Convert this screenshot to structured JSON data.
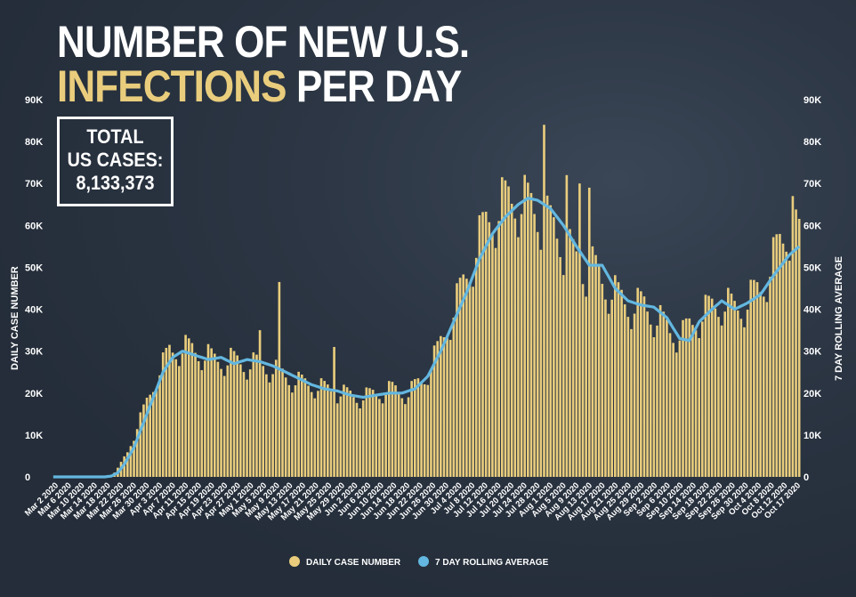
{
  "title": {
    "line1": "NUMBER OF NEW U.S.",
    "line2_accent": "INFECTIONS",
    "line2_rest": "PER DAY"
  },
  "total_box": {
    "line1": "TOTAL",
    "line2": "US CASES:",
    "line3": "8,133,373"
  },
  "colors": {
    "bar": "#e9cd7d",
    "line": "#63b7e0",
    "background": "#27303d",
    "text": "#ffffff"
  },
  "chart_data": {
    "type": "bar",
    "ylabel_left": "DAILY CASE NUMBER",
    "ylabel_right": "7 DAY ROLLING AVERAGE",
    "ylim": [
      0,
      90000
    ],
    "yticks": [
      0,
      10000,
      20000,
      30000,
      40000,
      50000,
      60000,
      70000,
      80000,
      90000
    ],
    "ytick_labels": [
      "0",
      "10K",
      "20K",
      "30K",
      "40K",
      "50K",
      "60K",
      "70K",
      "80K",
      "90K"
    ],
    "x_start": "2020-02-29",
    "x_end": "2020-10-17",
    "x_tick_labels": [
      "Mar 2 2020",
      "Mar 6 2020",
      "Mar 10 2020",
      "Mar 14 2020",
      "Mar 18 2020",
      "Mar 22 2020",
      "Mar 26 2020",
      "Mar 30 2020",
      "Apr 3 2020",
      "Apr 7 2020",
      "Apr 11 2020",
      "Apr 15 2020",
      "Apr 19 2020",
      "Apr 23 2020",
      "Apr 27 2020",
      "May 1 2020",
      "May 5 2020",
      "May 9 2020",
      "May 13 2020",
      "May 17 2020",
      "May 21 2020",
      "May 25 2020",
      "May 29 2020",
      "Jun 2 2020",
      "Jun 6 2020",
      "Jun 10 2020",
      "Jun 14 2020",
      "Jun 18 2020",
      "Jun 22 2020",
      "Jun 26 2020",
      "Jun 30 2020",
      "Jul 4 2020",
      "Jul 8 2020",
      "Jul 12 2020",
      "Jul 16 2020",
      "Jul 20 2020",
      "Jul 24 2020",
      "Jul 28 2020",
      "Aug 1 2020",
      "Aug 5 2020",
      "Aug 9 2020",
      "Aug 13 2020",
      "Aug 17 2020",
      "Aug 21 2020",
      "Aug 25 2020",
      "Aug 29 2020",
      "Sep 2 2020",
      "Sep 6 2020",
      "Sep 10 2020",
      "Sep 14 2020",
      "Sep 18 2020",
      "Sep 22 2020",
      "Sep 26 2020",
      "Sep 30 2020",
      "Oct 4 2020",
      "Oct 8 2020",
      "Oct 12 2020",
      "Oct 17 2020"
    ],
    "legend_position": "bottom",
    "series": [
      {
        "name": "DAILY CASE NUMBER",
        "type": "bar",
        "anchors": [
          [
            0,
            0
          ],
          [
            14,
            0
          ],
          [
            18,
            200
          ],
          [
            20,
            2000
          ],
          [
            23,
            6000
          ],
          [
            26,
            12000
          ],
          [
            29,
            18000
          ],
          [
            32,
            24000
          ],
          [
            36,
            30000
          ],
          [
            40,
            31000
          ],
          [
            45,
            30000
          ],
          [
            50,
            28000
          ],
          [
            55,
            28000
          ],
          [
            60,
            27000
          ],
          [
            65,
            27000
          ],
          [
            70,
            25000
          ],
          [
            75,
            23000
          ],
          [
            80,
            22000
          ],
          [
            85,
            21000
          ],
          [
            90,
            20000
          ],
          [
            95,
            19000
          ],
          [
            100,
            20000
          ],
          [
            105,
            21000
          ],
          [
            110,
            20000
          ],
          [
            115,
            24000
          ],
          [
            119,
            30000
          ],
          [
            123,
            38000
          ],
          [
            127,
            46000
          ],
          [
            131,
            55000
          ],
          [
            135,
            62000
          ],
          [
            139,
            65000
          ],
          [
            143,
            67000
          ],
          [
            147,
            65000
          ],
          [
            151,
            63000
          ],
          [
            155,
            59000
          ],
          [
            159,
            55000
          ],
          [
            163,
            50000
          ],
          [
            167,
            50000
          ],
          [
            171,
            46000
          ],
          [
            175,
            43000
          ],
          [
            179,
            41000
          ],
          [
            183,
            41000
          ],
          [
            187,
            38000
          ],
          [
            191,
            35000
          ],
          [
            195,
            34000
          ],
          [
            199,
            38000
          ],
          [
            203,
            40000
          ],
          [
            207,
            42000
          ],
          [
            211,
            40000
          ],
          [
            215,
            42000
          ],
          [
            219,
            45000
          ],
          [
            223,
            52000
          ],
          [
            228,
            60000
          ],
          [
            231,
            57000
          ]
        ],
        "spikes": [
          [
            64,
            35000
          ],
          [
            70,
            46500
          ],
          [
            87,
            31000
          ],
          [
            152,
            84000
          ],
          [
            159,
            72000
          ],
          [
            163,
            70000
          ],
          [
            166,
            69000
          ],
          [
            229,
            67000
          ]
        ]
      },
      {
        "name": "7 DAY ROLLING AVERAGE",
        "type": "line",
        "points": [
          [
            0,
            0
          ],
          [
            16,
            0
          ],
          [
            18,
            200
          ],
          [
            20,
            1000
          ],
          [
            22,
            3000
          ],
          [
            25,
            7000
          ],
          [
            28,
            13000
          ],
          [
            31,
            19000
          ],
          [
            34,
            25000
          ],
          [
            37,
            28500
          ],
          [
            40,
            30000
          ],
          [
            44,
            29000
          ],
          [
            48,
            28000
          ],
          [
            52,
            28500
          ],
          [
            56,
            27000
          ],
          [
            60,
            28000
          ],
          [
            64,
            27500
          ],
          [
            68,
            26500
          ],
          [
            72,
            25000
          ],
          [
            76,
            23500
          ],
          [
            80,
            22000
          ],
          [
            84,
            21000
          ],
          [
            88,
            20500
          ],
          [
            92,
            19500
          ],
          [
            96,
            19000
          ],
          [
            100,
            19500
          ],
          [
            104,
            20000
          ],
          [
            108,
            20000
          ],
          [
            112,
            21000
          ],
          [
            116,
            24000
          ],
          [
            120,
            30000
          ],
          [
            124,
            37000
          ],
          [
            128,
            44000
          ],
          [
            132,
            52000
          ],
          [
            136,
            58000
          ],
          [
            140,
            62000
          ],
          [
            144,
            65000
          ],
          [
            147,
            66500
          ],
          [
            150,
            66000
          ],
          [
            154,
            64000
          ],
          [
            158,
            60000
          ],
          [
            162,
            55000
          ],
          [
            166,
            50500
          ],
          [
            170,
            50500
          ],
          [
            174,
            45000
          ],
          [
            178,
            42000
          ],
          [
            182,
            41000
          ],
          [
            186,
            40500
          ],
          [
            190,
            38000
          ],
          [
            194,
            33000
          ],
          [
            197,
            32500
          ],
          [
            200,
            37000
          ],
          [
            204,
            40000
          ],
          [
            207,
            42000
          ],
          [
            211,
            40000
          ],
          [
            215,
            41500
          ],
          [
            219,
            43500
          ],
          [
            223,
            48000
          ],
          [
            228,
            53000
          ],
          [
            231,
            55000
          ]
        ]
      }
    ]
  }
}
